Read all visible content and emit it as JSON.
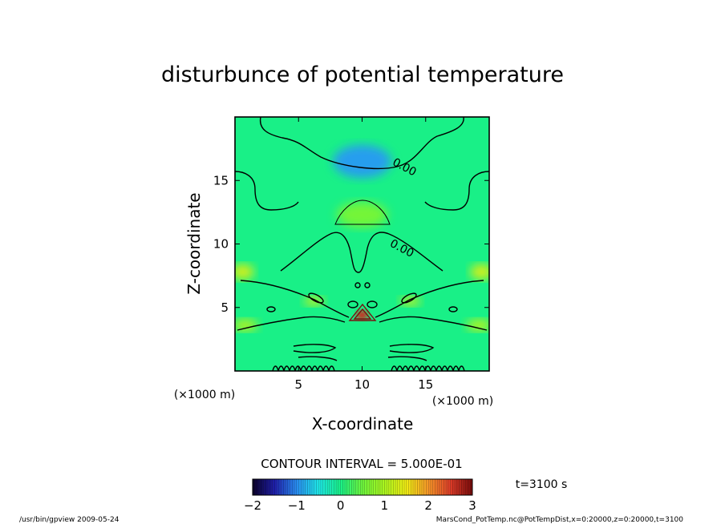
{
  "chart_data": {
    "type": "heatmap",
    "title": "disturbunce of potential temperature",
    "xlabel": "X-coordinate",
    "ylabel": "Z-coordinate",
    "x_unit": "(×1000 m)",
    "y_unit": "(×1000 m)",
    "xlim": [
      0,
      20
    ],
    "ylim": [
      0,
      20
    ],
    "x_ticks": [
      5,
      10,
      15
    ],
    "y_ticks": [
      5,
      10,
      15
    ],
    "contour_interval_label": "CONTOUR INTERVAL = 5.000E-01",
    "contour_labels": [
      {
        "text": "0.00",
        "x": 13.2,
        "z": 15.8
      },
      {
        "text": "0.00",
        "x": 13.0,
        "z": 9.4
      }
    ],
    "time_label": "t=3100 s",
    "colorbar": {
      "min": -2,
      "max": 3,
      "tick_labels": [
        "-2",
        "-1",
        "0",
        "1",
        "2",
        "3"
      ]
    },
    "features": [
      {
        "kind": "cold",
        "x": 10,
        "z": 16.5,
        "rx": 2.3,
        "rz": 1.3,
        "v": -0.9
      },
      {
        "kind": "warm",
        "x": 10,
        "z": 12.3,
        "rx": 2.0,
        "rz": 1.0,
        "v": 0.55
      },
      {
        "kind": "warm",
        "x": 0.6,
        "z": 7.8,
        "rx": 0.9,
        "rz": 0.6,
        "v": 1.3
      },
      {
        "kind": "warm",
        "x": 19.4,
        "z": 7.8,
        "rx": 0.9,
        "rz": 0.6,
        "v": 1.3
      },
      {
        "kind": "warm",
        "x": 0.8,
        "z": 3.6,
        "rx": 1.0,
        "rz": 0.45,
        "v": 1.1
      },
      {
        "kind": "warm",
        "x": 19.2,
        "z": 3.6,
        "rx": 1.0,
        "rz": 0.45,
        "v": 1.1
      },
      {
        "kind": "hot",
        "x": 10,
        "z": 4.4,
        "rx": 0.45,
        "rz": 0.35,
        "v": 2.6
      },
      {
        "kind": "warm",
        "x": 13.8,
        "z": 5.5,
        "rx": 0.8,
        "rz": 0.35,
        "v": 1.2
      },
      {
        "kind": "warm",
        "x": 6.2,
        "z": 5.5,
        "rx": 0.8,
        "rz": 0.35,
        "v": 1.2
      }
    ]
  },
  "footer": {
    "left": "/usr/bin/gpview  2009-05-24",
    "right": "MarsCond_PotTemp.nc@PotTempDist,x=0:20000,z=0:20000,t=3100"
  }
}
